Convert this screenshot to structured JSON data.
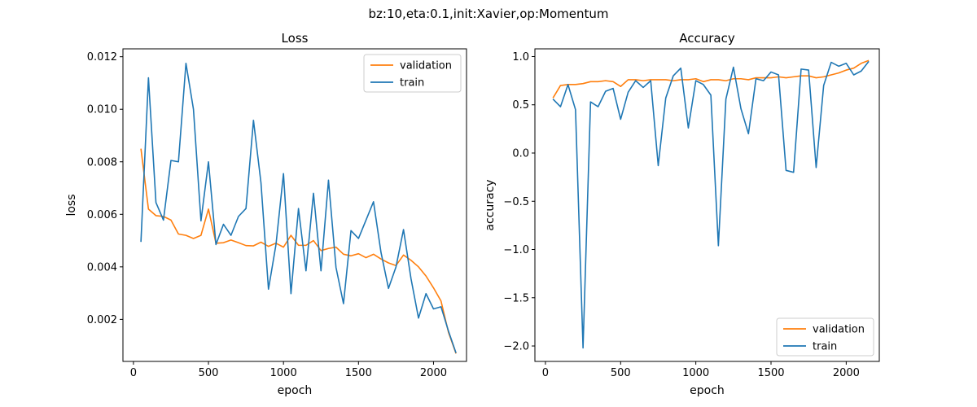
{
  "figure": {
    "suptitle": "bz:10,eta:0.1,init:Xavier,op:Momentum"
  },
  "chart_data": [
    {
      "type": "line",
      "title": "Loss",
      "xlabel": "epoch",
      "ylabel": "loss",
      "xlim": [
        -70,
        2220
      ],
      "ylim": [
        0.0004,
        0.0123
      ],
      "xticks": [
        0,
        500,
        1000,
        1500,
        2000
      ],
      "xtick_labels": [
        "0",
        "500",
        "1000",
        "1500",
        "2000"
      ],
      "yticks": [
        0.002,
        0.004,
        0.006,
        0.008,
        0.01,
        0.012
      ],
      "ytick_labels": [
        "0.002",
        "0.004",
        "0.006",
        "0.008",
        "0.010",
        "0.012"
      ],
      "grid": false,
      "legend": "upper right",
      "x": [
        50,
        100,
        150,
        200,
        250,
        300,
        350,
        400,
        450,
        500,
        550,
        600,
        650,
        700,
        750,
        800,
        850,
        900,
        950,
        1000,
        1050,
        1100,
        1150,
        1200,
        1250,
        1300,
        1350,
        1400,
        1450,
        1500,
        1550,
        1600,
        1650,
        1700,
        1750,
        1800,
        1850,
        1900,
        1950,
        2000,
        2050,
        2100,
        2150
      ],
      "series": [
        {
          "name": "validation",
          "color": "#ff7f0e",
          "values": [
            0.0085,
            0.0062,
            0.00595,
            0.00592,
            0.00578,
            0.00525,
            0.0052,
            0.00508,
            0.0052,
            0.0062,
            0.0049,
            0.00492,
            0.00502,
            0.00492,
            0.00481,
            0.0048,
            0.00494,
            0.00478,
            0.0049,
            0.00475,
            0.0052,
            0.00482,
            0.00482,
            0.005,
            0.00462,
            0.0047,
            0.00475,
            0.00448,
            0.00442,
            0.0045,
            0.00435,
            0.00448,
            0.0043,
            0.00415,
            0.00405,
            0.00445,
            0.00425,
            0.004,
            0.00365,
            0.0032,
            0.0027,
            0.0015,
            0.0007
          ]
        },
        {
          "name": "train",
          "color": "#1f77b4",
          "values": [
            0.00495,
            0.0112,
            0.00645,
            0.00578,
            0.00805,
            0.008,
            0.01175,
            0.01,
            0.00575,
            0.008,
            0.00485,
            0.00562,
            0.0052,
            0.00592,
            0.00622,
            0.00958,
            0.0072,
            0.00315,
            0.00485,
            0.00755,
            0.00298,
            0.00622,
            0.00385,
            0.0068,
            0.00385,
            0.0073,
            0.00398,
            0.0026,
            0.00538,
            0.00508,
            0.00578,
            0.00648,
            0.00455,
            0.00318,
            0.004,
            0.00542,
            0.00355,
            0.00205,
            0.00298,
            0.0024,
            0.00248,
            0.00155,
            0.00072
          ]
        }
      ]
    },
    {
      "type": "line",
      "title": "Accuracy",
      "xlabel": "epoch",
      "ylabel": "accuracy",
      "xlim": [
        -70,
        2220
      ],
      "ylim": [
        -2.16,
        1.08
      ],
      "xticks": [
        0,
        500,
        1000,
        1500,
        2000
      ],
      "xtick_labels": [
        "0",
        "500",
        "1000",
        "1500",
        "2000"
      ],
      "yticks": [
        -2.0,
        -1.5,
        -1.0,
        -0.5,
        0.0,
        0.5,
        1.0
      ],
      "ytick_labels": [
        "−2.0",
        "−1.5",
        "−1.0",
        "−0.5",
        "0.0",
        "0.5",
        "1.0"
      ],
      "grid": false,
      "legend": "lower right",
      "x": [
        50,
        100,
        150,
        200,
        250,
        300,
        350,
        400,
        450,
        500,
        550,
        600,
        650,
        700,
        750,
        800,
        850,
        900,
        950,
        1000,
        1050,
        1100,
        1150,
        1200,
        1250,
        1300,
        1350,
        1400,
        1450,
        1500,
        1550,
        1600,
        1650,
        1700,
        1750,
        1800,
        1850,
        1900,
        1950,
        2000,
        2050,
        2100,
        2150
      ],
      "series": [
        {
          "name": "validation",
          "color": "#ff7f0e",
          "values": [
            0.57,
            0.7,
            0.71,
            0.71,
            0.72,
            0.74,
            0.74,
            0.75,
            0.74,
            0.69,
            0.76,
            0.76,
            0.75,
            0.76,
            0.76,
            0.76,
            0.75,
            0.76,
            0.76,
            0.77,
            0.74,
            0.76,
            0.76,
            0.75,
            0.77,
            0.77,
            0.76,
            0.78,
            0.78,
            0.78,
            0.79,
            0.78,
            0.79,
            0.8,
            0.8,
            0.78,
            0.79,
            0.81,
            0.83,
            0.86,
            0.88,
            0.93,
            0.96
          ]
        },
        {
          "name": "train",
          "color": "#1f77b4",
          "values": [
            0.56,
            0.48,
            0.71,
            0.45,
            -2.02,
            0.53,
            0.48,
            0.64,
            0.67,
            0.35,
            0.63,
            0.75,
            0.68,
            0.75,
            -0.13,
            0.57,
            0.8,
            0.88,
            0.26,
            0.75,
            0.71,
            0.6,
            -0.96,
            0.56,
            0.89,
            0.46,
            0.2,
            0.77,
            0.75,
            0.84,
            0.81,
            -0.18,
            -0.2,
            0.87,
            0.86,
            -0.15,
            0.7,
            0.94,
            0.9,
            0.93,
            0.81,
            0.85,
            0.95
          ]
        }
      ]
    }
  ]
}
